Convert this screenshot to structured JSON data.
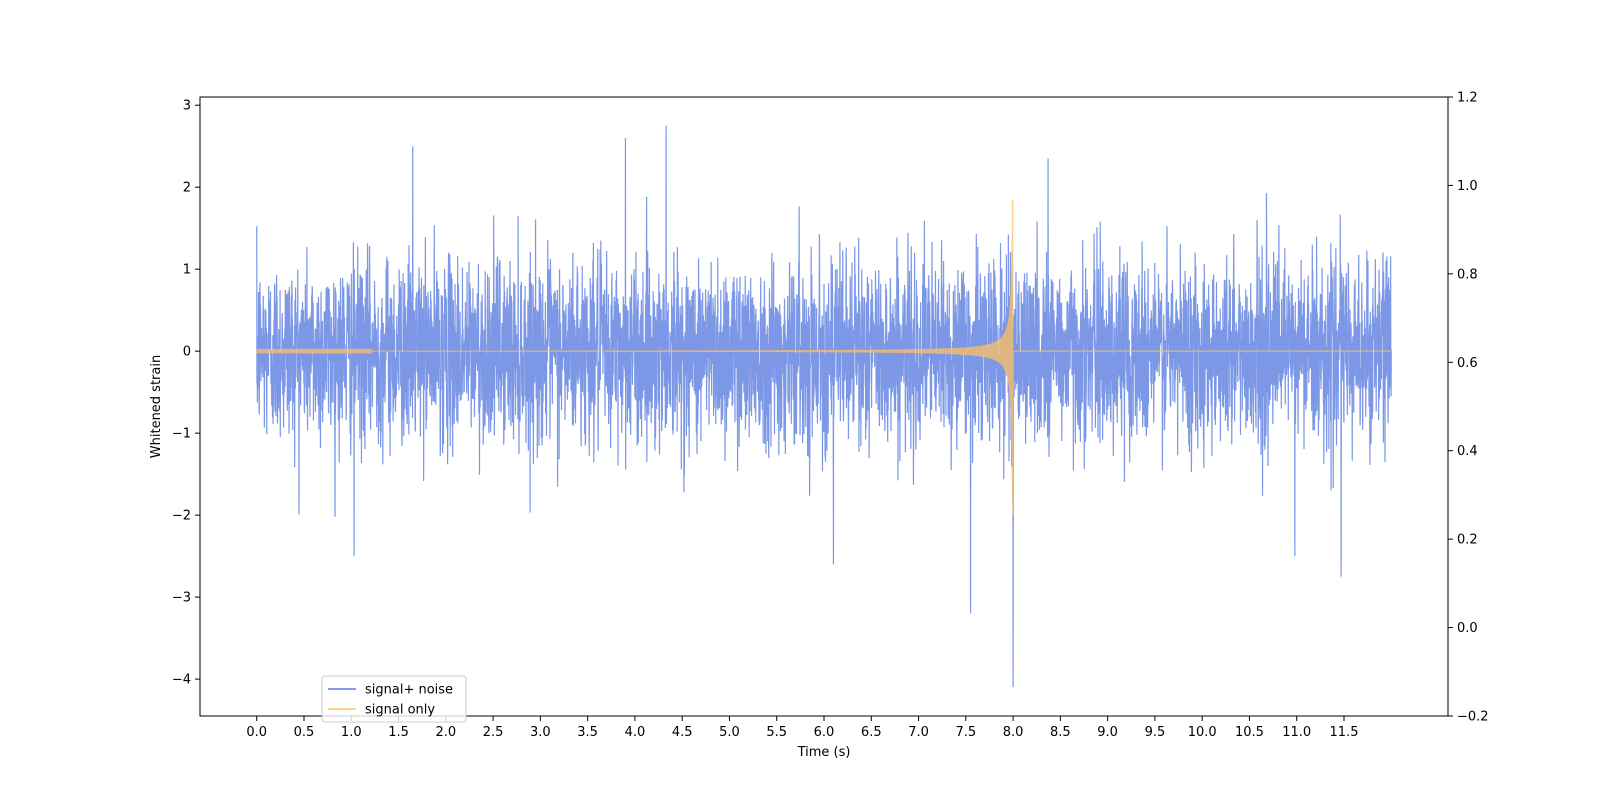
{
  "chart_data": {
    "type": "line",
    "title": "",
    "xlabel": "Time (s)",
    "ylabel": "Whitened strain",
    "xlim": [
      -0.6,
      12.6
    ],
    "ylim": [
      -4.45,
      3.1
    ],
    "y2lim": [
      -0.2,
      1.2
    ],
    "x_ticks": [
      0.0,
      0.5,
      1.0,
      1.5,
      2.0,
      2.5,
      3.0,
      3.5,
      4.0,
      4.5,
      5.0,
      5.5,
      6.0,
      6.5,
      7.0,
      7.5,
      8.0,
      8.5,
      9.0,
      9.5,
      10.0,
      10.5,
      11.0,
      11.5
    ],
    "x_tick_labels": [
      "0.0",
      "0.5",
      "1.0",
      "1.5",
      "2.0",
      "2.5",
      "3.0",
      "3.5",
      "4.0",
      "4.5",
      "5.0",
      "5.5",
      "6.0",
      "6.5",
      "7.0",
      "7.5",
      "8.0",
      "8.5",
      "9.0",
      "9.5",
      "10.0",
      "10.5",
      "11.0",
      "11.5"
    ],
    "y_ticks": [
      3,
      2,
      1,
      0,
      -1,
      -2,
      -3,
      -4
    ],
    "y_tick_labels": [
      "3",
      "2",
      "1",
      "0",
      "−1",
      "−2",
      "−3",
      "−4"
    ],
    "y2_ticks": [
      1.2,
      1.0,
      0.8,
      0.6,
      0.4,
      0.2,
      0.0,
      -0.2
    ],
    "y2_tick_labels": [
      "1.2",
      "1.0",
      "0.8",
      "0.6",
      "0.4",
      "0.2",
      "0.0",
      "−0.2"
    ],
    "grid": false,
    "legend_position": "lower-left",
    "series": [
      {
        "name": "signal+ noise",
        "color": "#5a7de0",
        "x_range": [
          0.0,
          12.0
        ],
        "typical_range": [
          -1.4,
          1.4
        ],
        "notable_extremes": [
          {
            "x": 1.03,
            "y": -2.5
          },
          {
            "x": 1.65,
            "y": 2.5
          },
          {
            "x": 3.9,
            "y": 2.6
          },
          {
            "x": 4.33,
            "y": 2.75
          },
          {
            "x": 6.1,
            "y": -2.6
          },
          {
            "x": 7.55,
            "y": -3.2
          },
          {
            "x": 8.0,
            "y": -4.1
          },
          {
            "x": 8.37,
            "y": 2.35
          },
          {
            "x": 10.98,
            "y": -2.5
          },
          {
            "x": 11.47,
            "y": -2.75
          }
        ]
      },
      {
        "name": "signal only",
        "color": "#ffc061",
        "x_range": [
          0.0,
          12.0
        ],
        "merger_time": 8.0,
        "peak_amplitude": 1.85,
        "min_value": -2.0,
        "description_values": {
          "flat_level": 0.0
        }
      }
    ]
  }
}
